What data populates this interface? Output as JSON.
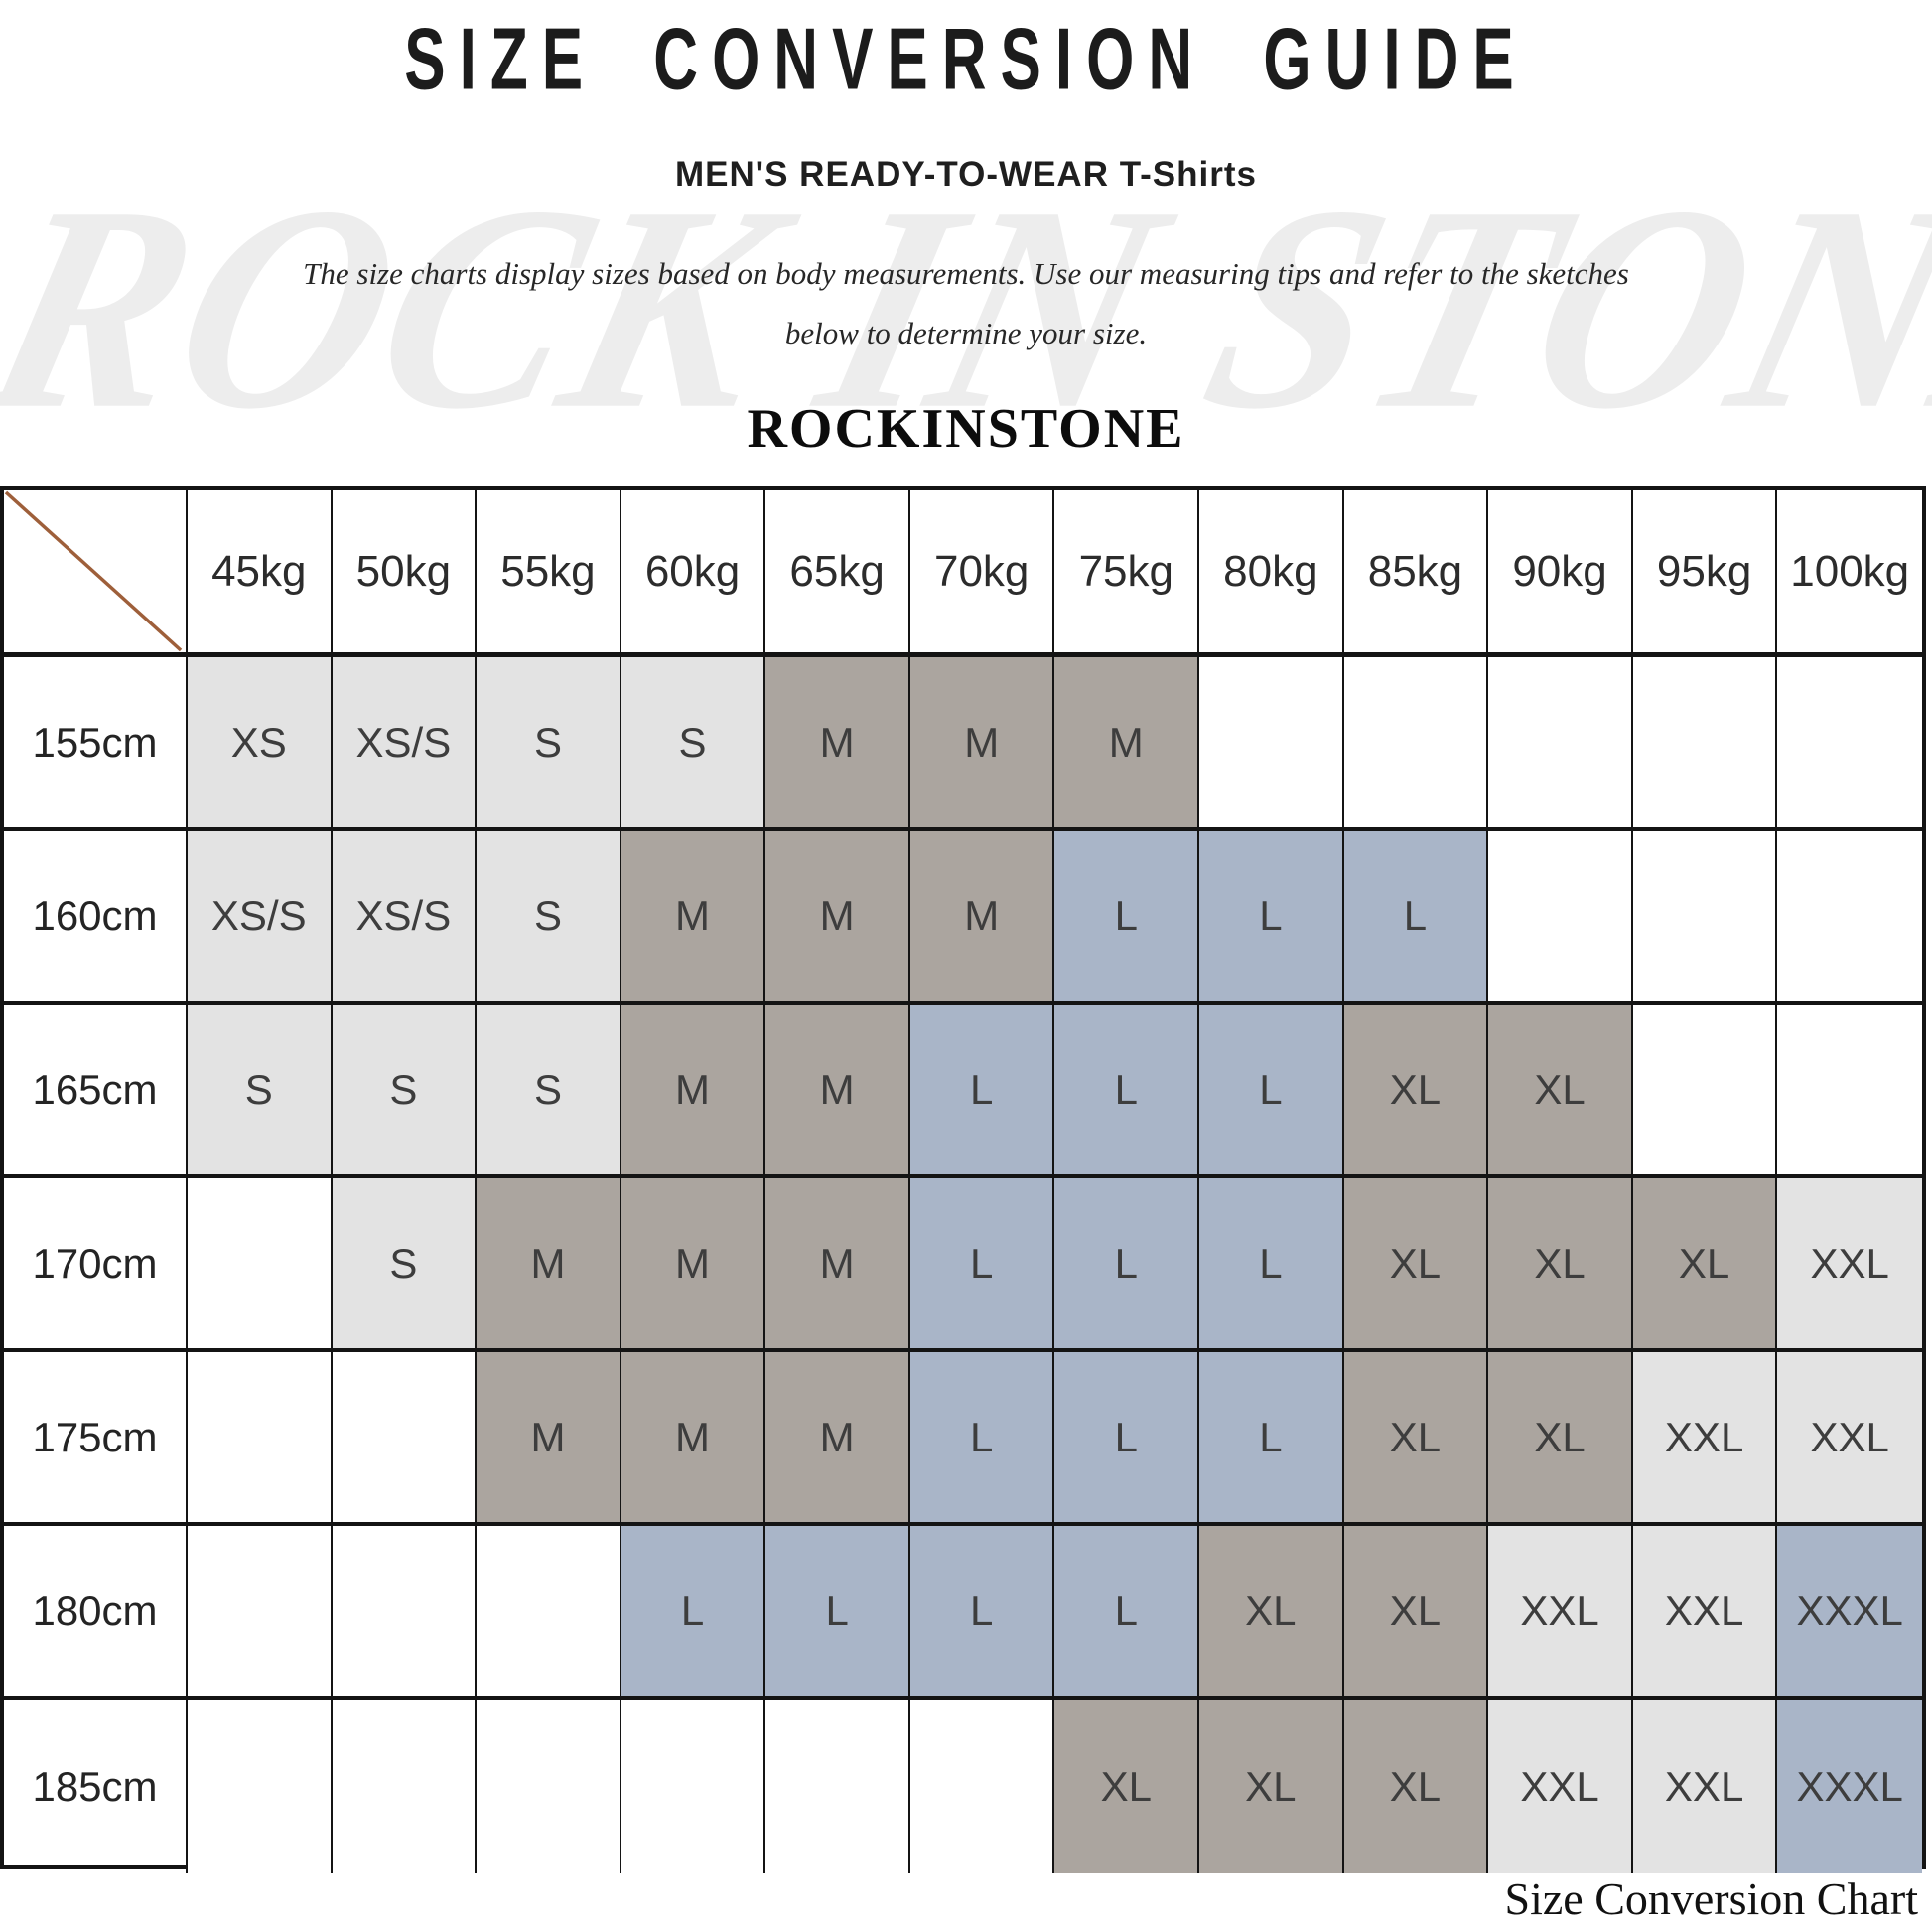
{
  "page": {
    "title": "SIZE CONVERSION GUIDE",
    "subtitle_main": "MEN'S READY-TO-WEAR",
    "subtitle_item": "T-Shirts",
    "description_line1": "The size charts display sizes based on body measurements.  Use our measuring tips and refer to the sketches",
    "description_line2": "below to determine your size.",
    "watermark": "ROCK IN STONE",
    "brand": "ROCKINSTONE",
    "footer_caption": "Size Conversion Chart"
  },
  "colors": {
    "light": "#e3e3e3",
    "taupe": "#aba59f",
    "blue": "#a9b5c8",
    "white": "#ffffff",
    "diagonal_line": "#9e5f3a",
    "border": "#141414",
    "cell_text": "#3d3d3d"
  },
  "chart_data": {
    "type": "table",
    "title": "Size Conversion Chart",
    "columns": [
      "45kg",
      "50kg",
      "55kg",
      "60kg",
      "65kg",
      "70kg",
      "75kg",
      "80kg",
      "85kg",
      "90kg",
      "95kg",
      "100kg"
    ],
    "rows": [
      {
        "label": "155cm",
        "cells": [
          {
            "v": "XS",
            "c": "light"
          },
          {
            "v": "XS/S",
            "c": "light"
          },
          {
            "v": "S",
            "c": "light"
          },
          {
            "v": "S",
            "c": "light"
          },
          {
            "v": "M",
            "c": "taupe"
          },
          {
            "v": "M",
            "c": "taupe"
          },
          {
            "v": "M",
            "c": "taupe"
          },
          {
            "v": "",
            "c": "white"
          },
          {
            "v": "",
            "c": "white"
          },
          {
            "v": "",
            "c": "white"
          },
          {
            "v": "",
            "c": "white"
          },
          {
            "v": "",
            "c": "white"
          }
        ]
      },
      {
        "label": "160cm",
        "cells": [
          {
            "v": "XS/S",
            "c": "light"
          },
          {
            "v": "XS/S",
            "c": "light"
          },
          {
            "v": "S",
            "c": "light"
          },
          {
            "v": "M",
            "c": "taupe"
          },
          {
            "v": "M",
            "c": "taupe"
          },
          {
            "v": "M",
            "c": "taupe"
          },
          {
            "v": "L",
            "c": "blue"
          },
          {
            "v": "L",
            "c": "blue"
          },
          {
            "v": "L",
            "c": "blue"
          },
          {
            "v": "",
            "c": "white"
          },
          {
            "v": "",
            "c": "white"
          },
          {
            "v": "",
            "c": "white"
          }
        ]
      },
      {
        "label": "165cm",
        "cells": [
          {
            "v": "S",
            "c": "light"
          },
          {
            "v": "S",
            "c": "light"
          },
          {
            "v": "S",
            "c": "light"
          },
          {
            "v": "M",
            "c": "taupe"
          },
          {
            "v": "M",
            "c": "taupe"
          },
          {
            "v": "L",
            "c": "blue"
          },
          {
            "v": "L",
            "c": "blue"
          },
          {
            "v": "L",
            "c": "blue"
          },
          {
            "v": "XL",
            "c": "taupe"
          },
          {
            "v": "XL",
            "c": "taupe"
          },
          {
            "v": "",
            "c": "white"
          },
          {
            "v": "",
            "c": "white"
          }
        ]
      },
      {
        "label": "170cm",
        "cells": [
          {
            "v": "",
            "c": "white"
          },
          {
            "v": "S",
            "c": "light"
          },
          {
            "v": "M",
            "c": "taupe"
          },
          {
            "v": "M",
            "c": "taupe"
          },
          {
            "v": "M",
            "c": "taupe"
          },
          {
            "v": "L",
            "c": "blue"
          },
          {
            "v": "L",
            "c": "blue"
          },
          {
            "v": "L",
            "c": "blue"
          },
          {
            "v": "XL",
            "c": "taupe"
          },
          {
            "v": "XL",
            "c": "taupe"
          },
          {
            "v": "XL",
            "c": "taupe"
          },
          {
            "v": "XXL",
            "c": "light"
          }
        ]
      },
      {
        "label": "175cm",
        "cells": [
          {
            "v": "",
            "c": "white"
          },
          {
            "v": "",
            "c": "white"
          },
          {
            "v": "M",
            "c": "taupe"
          },
          {
            "v": "M",
            "c": "taupe"
          },
          {
            "v": "M",
            "c": "taupe"
          },
          {
            "v": "L",
            "c": "blue"
          },
          {
            "v": "L",
            "c": "blue"
          },
          {
            "v": "L",
            "c": "blue"
          },
          {
            "v": "XL",
            "c": "taupe"
          },
          {
            "v": "XL",
            "c": "taupe"
          },
          {
            "v": "XXL",
            "c": "light"
          },
          {
            "v": "XXL",
            "c": "light"
          }
        ]
      },
      {
        "label": "180cm",
        "cells": [
          {
            "v": "",
            "c": "white"
          },
          {
            "v": "",
            "c": "white"
          },
          {
            "v": "",
            "c": "white"
          },
          {
            "v": "L",
            "c": "blue"
          },
          {
            "v": "L",
            "c": "blue"
          },
          {
            "v": "L",
            "c": "blue"
          },
          {
            "v": "L",
            "c": "blue"
          },
          {
            "v": "XL",
            "c": "taupe"
          },
          {
            "v": "XL",
            "c": "taupe"
          },
          {
            "v": "XXL",
            "c": "light"
          },
          {
            "v": "XXL",
            "c": "light"
          },
          {
            "v": "XXXL",
            "c": "blue"
          }
        ]
      },
      {
        "label": "185cm",
        "cells": [
          {
            "v": "",
            "c": "white"
          },
          {
            "v": "",
            "c": "white"
          },
          {
            "v": "",
            "c": "white"
          },
          {
            "v": "",
            "c": "white"
          },
          {
            "v": "",
            "c": "white"
          },
          {
            "v": "",
            "c": "white"
          },
          {
            "v": "XL",
            "c": "taupe"
          },
          {
            "v": "XL",
            "c": "taupe"
          },
          {
            "v": "XL",
            "c": "taupe"
          },
          {
            "v": "XXL",
            "c": "light"
          },
          {
            "v": "XXL",
            "c": "light"
          },
          {
            "v": "XXXL",
            "c": "blue"
          }
        ]
      }
    ]
  }
}
